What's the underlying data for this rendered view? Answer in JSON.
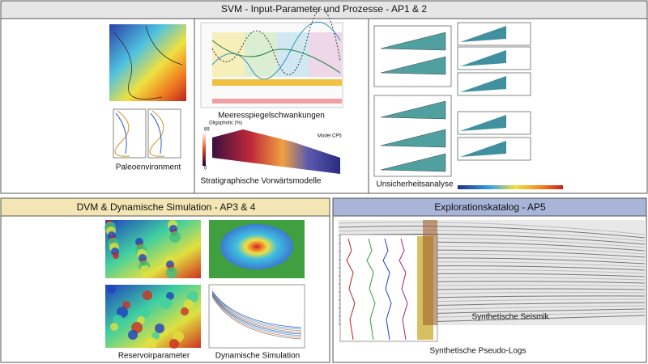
{
  "top": {
    "title": "SVM - Input-Parameter und Prozesse - AP1 & 2",
    "paleoenvironment": "Paleoenvironment",
    "sea_level": "Meeresspiegelschwankungen",
    "legend_title": "Oligophotic (%)",
    "legend_max": "89",
    "legend_min": "0",
    "model_label": "Model CP5",
    "strat_models": "Stratigraphische Vorwärtsmodelle",
    "uncertainty": "Unsicherheitsanalyse"
  },
  "left": {
    "title": "DVM & Dynamische Simulation - AP3 & 4",
    "reservoir": "Reservoirparameter",
    "simulation": "Dynamische Simulation"
  },
  "right": {
    "title": "Explorationskatalog - AP5",
    "seismic": "Synthetische Seismik",
    "logs": "Synthetische Pseudo-Logs"
  }
}
